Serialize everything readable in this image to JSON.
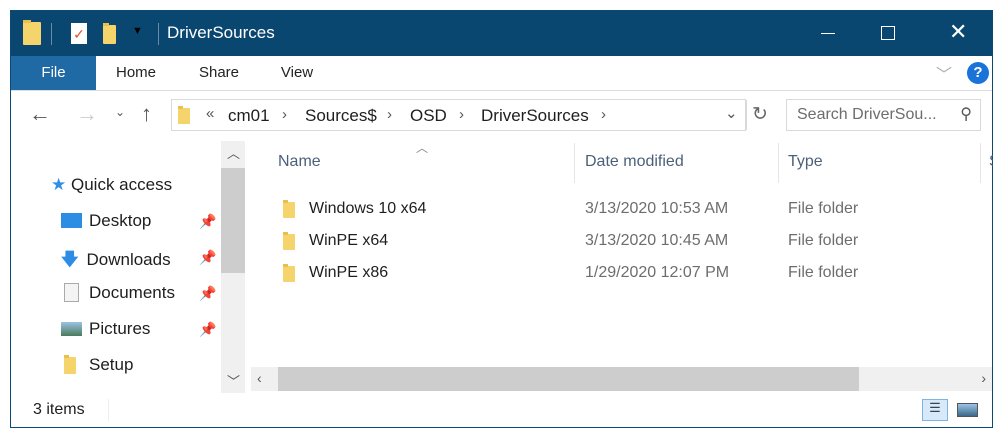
{
  "window": {
    "title": "DriverSources"
  },
  "ribbon": {
    "tabs": [
      "File",
      "Home",
      "Share",
      "View"
    ]
  },
  "address": {
    "overflow": "«",
    "crumbs": [
      "cm01",
      "Sources$",
      "OSD",
      "DriverSources"
    ]
  },
  "search": {
    "placeholder": "Search DriverSou..."
  },
  "sidebar": {
    "quick_access": "Quick access",
    "items": [
      {
        "label": "Desktop",
        "pinned": true
      },
      {
        "label": "Downloads",
        "pinned": true
      },
      {
        "label": "Documents",
        "pinned": true
      },
      {
        "label": "Pictures",
        "pinned": true
      },
      {
        "label": "Setup",
        "pinned": false
      }
    ]
  },
  "columns": [
    "Name",
    "Date modified",
    "Type",
    "S"
  ],
  "files": [
    {
      "name": "Windows 10 x64",
      "date": "3/13/2020 10:53 AM",
      "type": "File folder"
    },
    {
      "name": "WinPE x64",
      "date": "3/13/2020 10:45 AM",
      "type": "File folder"
    },
    {
      "name": "WinPE x86",
      "date": "1/29/2020 12:07 PM",
      "type": "File folder"
    }
  ],
  "status": {
    "count": "3 items"
  },
  "colors": {
    "titlebar": "#0a4770",
    "file_tab": "#1f6aa5",
    "help": "#1a73d9"
  }
}
